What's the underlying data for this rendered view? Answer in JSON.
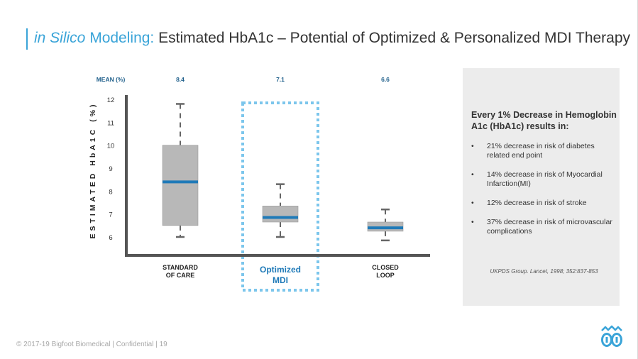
{
  "title": {
    "part1": "in Silico",
    "part2": " Modeling:",
    "part3": " Estimated HbA1c – Potential of Optimized & Personalized  MDI Therapy"
  },
  "colors": {
    "accent": "#3aa4d8",
    "box_fill": "#b8b8b8",
    "median": "#1f7ab8",
    "axis": "#555555",
    "highlight_border": "#7cc6ec",
    "panel_bg": "#ececec"
  },
  "chart_data": {
    "type": "box",
    "ylabel": "ESTIMATED HbA1C (%)",
    "yticks": [
      "12",
      "11",
      "10",
      "9",
      "8",
      "7",
      "6"
    ],
    "ylim": [
      5.2,
      12.3
    ],
    "mean_header": "MEAN (%)",
    "categories": [
      {
        "label_lines": [
          "STANDARD",
          "OF CARE"
        ],
        "mean": "8.4",
        "whisker_low": 6.0,
        "q1": 6.5,
        "median": 8.4,
        "q3": 10.0,
        "whisker_high": 11.8,
        "highlighted": false
      },
      {
        "label_lines": [
          "Optimized",
          "MDI"
        ],
        "mean": "7.1",
        "whisker_low": 6.0,
        "q1": 6.65,
        "median": 6.85,
        "q3": 7.35,
        "whisker_high": 8.3,
        "highlighted": true
      },
      {
        "label_lines": [
          "CLOSED",
          "LOOP"
        ],
        "mean": "6.6",
        "whisker_low": 5.85,
        "q1": 6.25,
        "median": 6.4,
        "q3": 6.65,
        "whisker_high": 7.2,
        "highlighted": false
      }
    ]
  },
  "panel": {
    "heading": "Every 1% Decrease in Hemoglobin A1c (HbA1c) results in:",
    "bullet": "•",
    "items": [
      "21% decrease in risk of diabetes related end point",
      "14% decrease in risk of Myocardial Infarction(MI)",
      "12% decrease in risk of stroke",
      "37% decrease in risk of microvascular complications"
    ],
    "citation": "UKPDS Group. Lancet, 1998; 352:837-853"
  },
  "footer": "© 2017-19 Bigfoot Biomedical  |  Confidential  |  19",
  "logo_icon": "bigfoot-logo-icon"
}
